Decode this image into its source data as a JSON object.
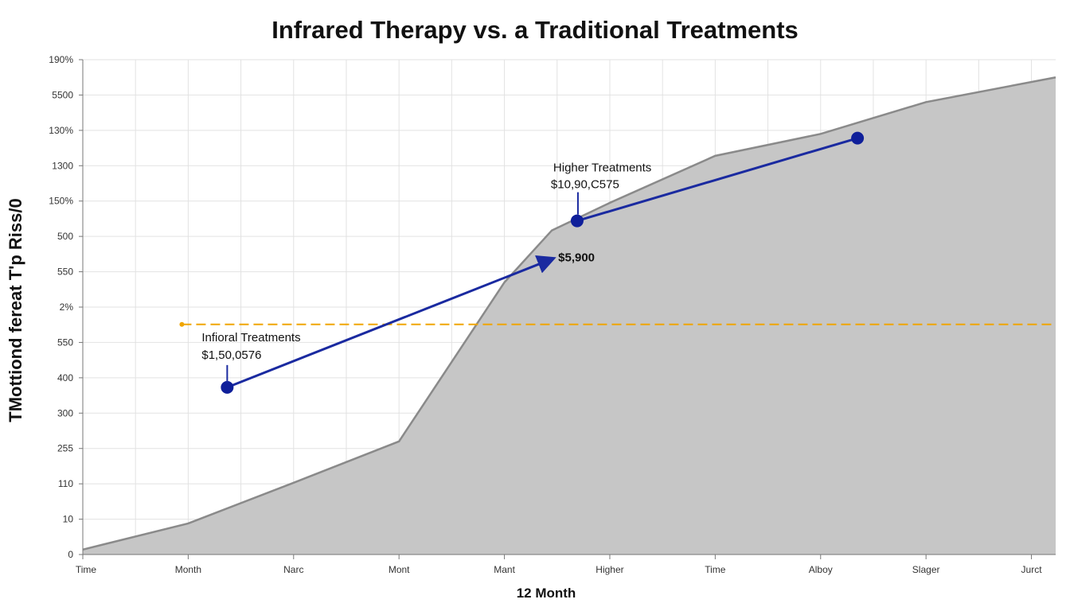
{
  "chart_data": {
    "type": "area",
    "title": "Infrared Therapy vs.  a Traditional Treatments",
    "xlabel": "12 Month",
    "ylabel": "TMottiond fereat T'p Riss/0",
    "x_tick_labels": [
      "Time",
      "Month",
      "Narc",
      "Mont",
      "Mant",
      "Higher",
      "Time",
      "Alboy",
      "Slager",
      "Jurct"
    ],
    "y_tick_labels": [
      "0",
      "10",
      "110",
      "255",
      "300",
      "400",
      "550",
      "2%",
      "550",
      "500",
      "150%",
      "1300",
      "130%",
      "5500",
      "190%"
    ],
    "xlim": [
      0,
      9.23
    ],
    "ylim": [
      0,
      14
    ],
    "grid": true,
    "series": [
      {
        "name": "area",
        "color": "#c6c6c6",
        "line_color": "#8a8a8a",
        "x": [
          0,
          1,
          2,
          3,
          4,
          4.45,
          5,
          6,
          7,
          8,
          9.23
        ],
        "y": [
          0.14,
          0.88,
          2.03,
          3.2,
          7.7,
          9.17,
          9.95,
          11.28,
          11.9,
          12.8,
          13.5
        ]
      },
      {
        "name": "blue-arrow-segment",
        "color": "#1a2aa0",
        "x": [
          1.37,
          4.45
        ],
        "y": [
          4.73,
          8.36
        ]
      },
      {
        "name": "blue-segment",
        "color": "#1a2aa0",
        "x": [
          4.69,
          7.35
        ],
        "y": [
          9.44,
          11.78
        ]
      },
      {
        "name": "reference-line",
        "color": "#f0a500",
        "x": [
          0.94,
          9.23
        ],
        "y": [
          6.51,
          6.51
        ]
      }
    ],
    "annotations": [
      {
        "label": "Infioral Treatments",
        "value": "$1,50,0576",
        "x": 1.37,
        "y": 4.73
      },
      {
        "label": "Higher Treatments",
        "value": "$10,90,C575",
        "x": 4.69,
        "y": 9.44
      },
      {
        "label": "",
        "value": "$5,900",
        "x": 4.45,
        "y": 8.36
      }
    ]
  }
}
